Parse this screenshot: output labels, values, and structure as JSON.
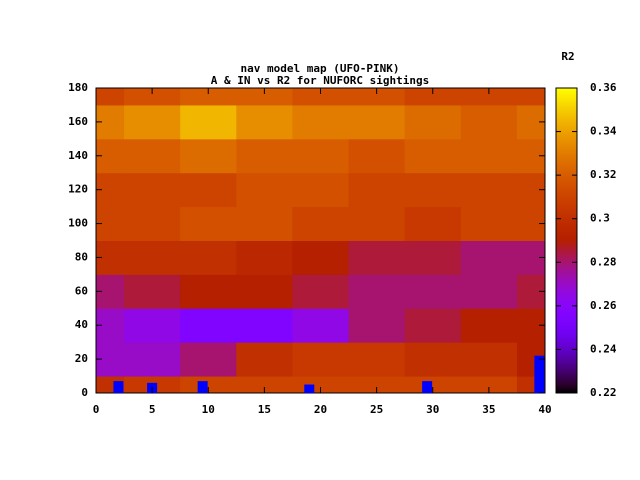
{
  "chart_data": {
    "type": "heatmap",
    "title": "nav model map (UFO-PINK)",
    "subtitle": "A & IN vs R2 for NUFORC sightings",
    "x": [
      0,
      5,
      10,
      15,
      20,
      25,
      30,
      35,
      40
    ],
    "y": [
      0,
      20,
      40,
      60,
      80,
      100,
      120,
      140,
      160,
      180
    ],
    "values": [
      [
        0.3,
        0.305,
        0.31,
        0.31,
        0.31,
        0.31,
        0.31,
        0.31,
        0.3
      ],
      [
        0.27,
        0.27,
        0.28,
        0.3,
        0.305,
        0.305,
        0.3,
        0.3,
        0.29
      ],
      [
        0.27,
        0.265,
        0.255,
        0.255,
        0.265,
        0.28,
        0.285,
        0.29,
        0.29
      ],
      [
        0.28,
        0.285,
        0.29,
        0.29,
        0.285,
        0.28,
        0.28,
        0.28,
        0.285
      ],
      [
        0.3,
        0.3,
        0.3,
        0.295,
        0.29,
        0.285,
        0.285,
        0.28,
        0.28
      ],
      [
        0.31,
        0.31,
        0.315,
        0.315,
        0.31,
        0.31,
        0.305,
        0.31,
        0.31
      ],
      [
        0.31,
        0.31,
        0.31,
        0.315,
        0.315,
        0.31,
        0.31,
        0.31,
        0.31
      ],
      [
        0.32,
        0.32,
        0.325,
        0.32,
        0.32,
        0.315,
        0.32,
        0.32,
        0.32
      ],
      [
        0.33,
        0.335,
        0.345,
        0.335,
        0.33,
        0.33,
        0.325,
        0.32,
        0.325
      ],
      [
        0.31,
        0.315,
        0.32,
        0.32,
        0.315,
        0.315,
        0.31,
        0.31,
        0.31
      ]
    ],
    "points": {
      "x": [
        2,
        5,
        9.5,
        19,
        29.5,
        39.5
      ],
      "values": [
        7,
        6,
        7,
        5,
        7,
        22
      ],
      "color": "#0000ff"
    },
    "xlim": [
      0,
      40
    ],
    "xticks": [
      0,
      5,
      10,
      15,
      20,
      25,
      30,
      35,
      40
    ],
    "ylim": [
      0,
      180
    ],
    "yticks": [
      0,
      20,
      40,
      60,
      80,
      100,
      120,
      140,
      160,
      180
    ],
    "colorbar_label": "R2",
    "cblim": [
      0.22,
      0.36
    ],
    "cbticks": [
      0.22,
      0.24,
      0.26,
      0.28,
      0.3,
      0.32,
      0.34,
      0.36
    ]
  }
}
